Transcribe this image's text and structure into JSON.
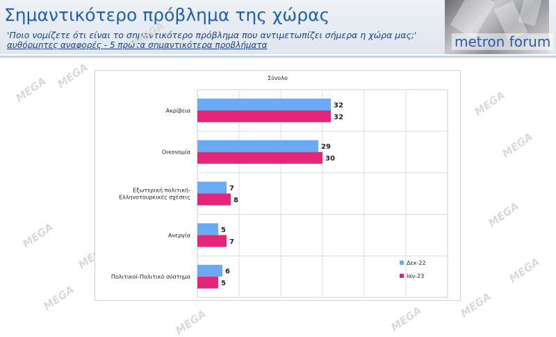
{
  "header": {
    "title": "Σημαντικότερο πρόβλημα της χώρας",
    "question": "'Ποιο νομίζετε ότι  είναι το σημαντικότερο πρόβλημα που αντιμετωπίζει σήμερα η χώρα μας;'",
    "subquestion": "αυθόρμητες αναφορές - 5 πρώτα σημαντικότερα προβλήματα",
    "logo": "metron forum"
  },
  "watermark": "MEGA",
  "colors": {
    "dec22": "#6aaaf5",
    "jan23": "#e4257a",
    "title": "#1e5fae"
  },
  "chart_data": {
    "type": "bar",
    "orientation": "horizontal",
    "title": "Σύνολο",
    "categories": [
      "Ακρίβεια",
      "Οικονομία",
      "Εξωτερική πολιτική-\nΕλληνοτουρκικές σχέσεις",
      "Ανεργία",
      "Πολιτικοί-Πολιτικό σύστημα"
    ],
    "series": [
      {
        "name": "Δεκ-22",
        "values": [
          32,
          29,
          7,
          5,
          6
        ]
      },
      {
        "name": "Ιαν-23",
        "values": [
          32,
          30,
          8,
          7,
          5
        ]
      }
    ],
    "xlim": [
      0,
      60
    ],
    "grid": true,
    "legend": "bottom-right"
  }
}
